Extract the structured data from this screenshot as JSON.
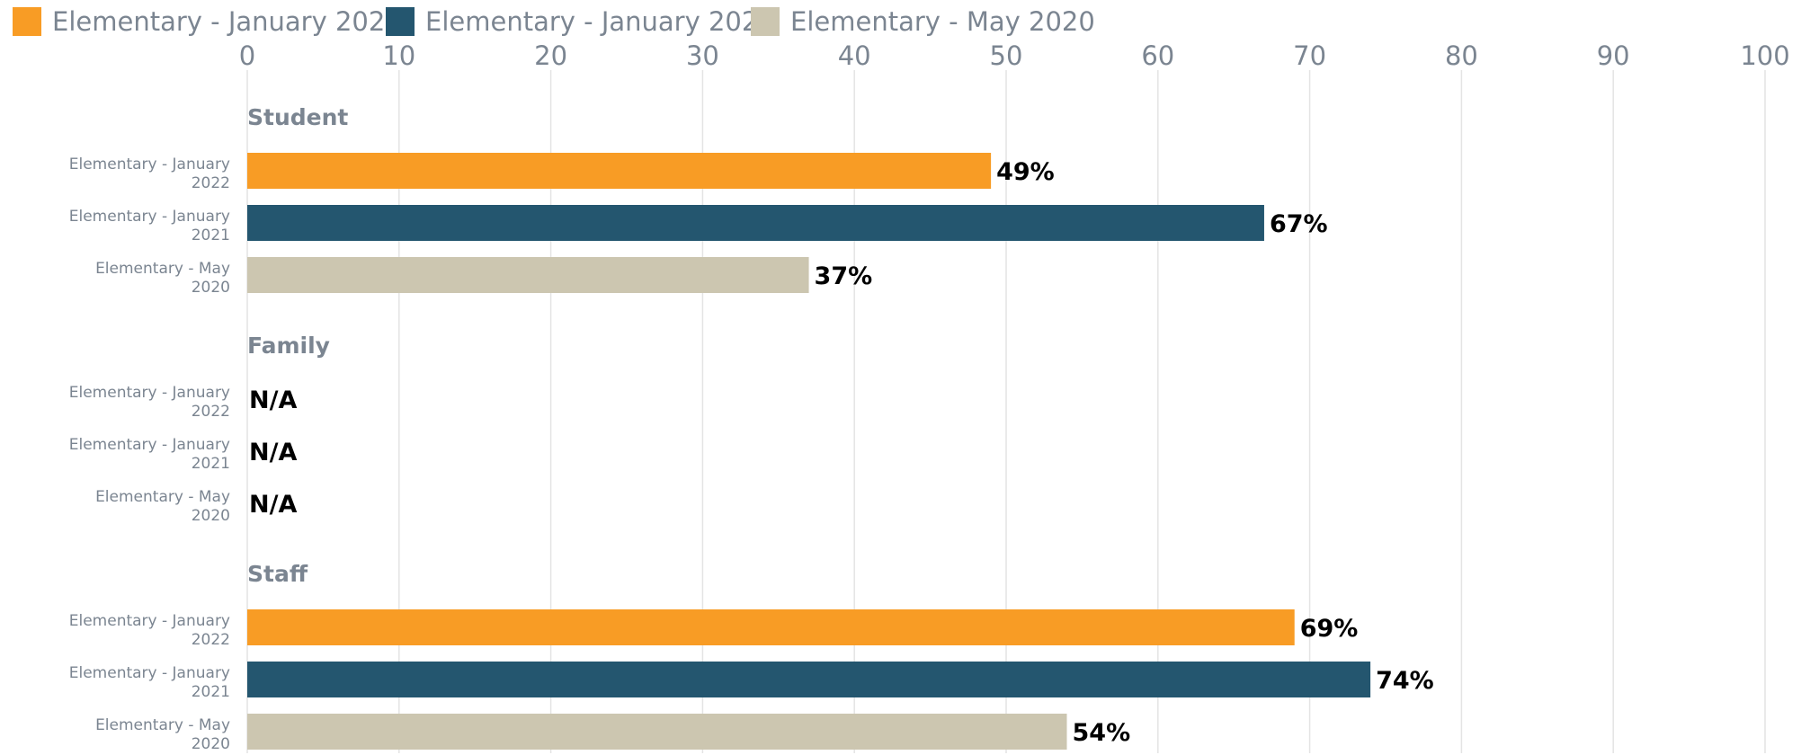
{
  "chart_data": {
    "type": "bar",
    "orientation": "horizontal",
    "title": "",
    "xlabel": "",
    "ylabel": "",
    "xlim": [
      0,
      100
    ],
    "ticks": [
      0,
      10,
      20,
      30,
      40,
      50,
      60,
      70,
      80,
      90,
      100
    ],
    "grid": true,
    "legend_position": "top-left",
    "value_suffix": "%",
    "na_label": "N/A",
    "series": [
      {
        "name": "Elementary - January 2022",
        "color": "#f89c25",
        "category_lines": [
          "Elementary - January",
          "2022"
        ]
      },
      {
        "name": "Elementary - January 2021",
        "color": "#24566f",
        "category_lines": [
          "Elementary - January",
          "2021"
        ]
      },
      {
        "name": "Elementary - May 2020",
        "color": "#ccc6b0",
        "category_lines": [
          "Elementary - May",
          "2020"
        ]
      }
    ],
    "groups": [
      {
        "name": "Student",
        "values": [
          49,
          67,
          37
        ]
      },
      {
        "name": "Family",
        "values": [
          null,
          null,
          null
        ]
      },
      {
        "name": "Staff",
        "values": [
          69,
          74,
          54
        ]
      }
    ]
  }
}
